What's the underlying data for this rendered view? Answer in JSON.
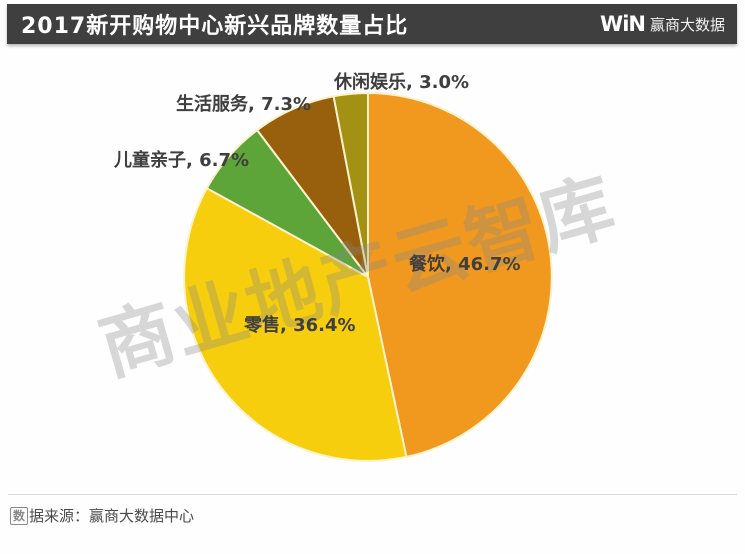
{
  "header": {
    "title": "2017新开购物中心新兴品牌数量占比",
    "bg_color": "#3F3F3F",
    "logo": {
      "win": "WiN",
      "brand": "赢商大数据"
    }
  },
  "chart_data": {
    "type": "pie",
    "title": "2017新开购物中心新兴品牌数量占比",
    "start_angle_deg": 0,
    "direction": "clockwise",
    "legend": "none",
    "separator_color": "#FCF3CC",
    "slices": [
      {
        "label": "餐饮",
        "value": 46.7,
        "display": "餐饮, 46.7%",
        "color": "#F0991E",
        "label_position": "inside"
      },
      {
        "label": "零售",
        "value": 36.4,
        "display": "零售, 36.4%",
        "color": "#F7CE0D",
        "label_position": "inside"
      },
      {
        "label": "儿童亲子",
        "value": 6.7,
        "display": "儿童亲子, 6.7%",
        "color": "#5DA439",
        "label_position": "outside"
      },
      {
        "label": "生活服务",
        "value": 7.3,
        "display": "生活服务, 7.3%",
        "color": "#985F0D",
        "label_position": "outside"
      },
      {
        "label": "休闲娱乐",
        "value": 3.0,
        "display": "休闲娱乐, 3.0%",
        "color": "#A39114",
        "label_position": "outside"
      }
    ]
  },
  "watermark": {
    "text": "商业地产云智库"
  },
  "footer": {
    "source_boxed_char": "数",
    "source_text": "据来源：赢商大数据中心"
  }
}
